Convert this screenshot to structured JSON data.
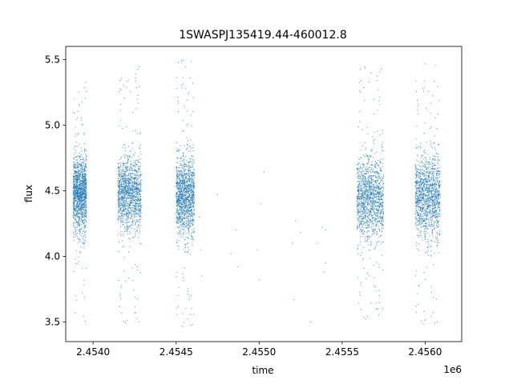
{
  "chart_data": {
    "type": "scatter",
    "title": "1SWASPJ135419.44-460012.8",
    "xlabel": "time",
    "ylabel": "flux",
    "x_offset_label": "1e6",
    "xlim": [
      2453835,
      2456220
    ],
    "ylim": [
      3.35,
      5.6
    ],
    "x_ticks": [
      2.454,
      2.4545,
      2.455,
      2.4555,
      2.456
    ],
    "x_tick_labels": [
      "2.4540",
      "2.4545",
      "2.4550",
      "2.4555",
      "2.4560"
    ],
    "y_ticks": [
      3.5,
      4.0,
      4.5,
      5.0,
      5.5
    ],
    "y_tick_labels": [
      "3.5",
      "4.0",
      "4.5",
      "5.0",
      "5.5"
    ],
    "grid": false,
    "marker_color": "#1f77b4",
    "clusters": [
      {
        "x_range": [
          2453880,
          2453960
        ],
        "y_center": 4.47,
        "y_spread": 0.14,
        "y_min": 3.5,
        "y_max": 5.33
      },
      {
        "x_range": [
          2454150,
          2454290
        ],
        "y_center": 4.47,
        "y_spread": 0.14,
        "y_min": 3.47,
        "y_max": 5.47
      },
      {
        "x_range": [
          2454500,
          2454610
        ],
        "y_center": 4.45,
        "y_spread": 0.15,
        "y_min": 3.45,
        "y_max": 5.5
      },
      {
        "x_range": [
          2455590,
          2455750
        ],
        "y_center": 4.43,
        "y_spread": 0.16,
        "y_min": 3.5,
        "y_max": 5.45
      },
      {
        "x_range": [
          2455940,
          2456090
        ],
        "y_center": 4.45,
        "y_spread": 0.16,
        "y_min": 3.47,
        "y_max": 5.47
      }
    ],
    "sparse_points": [
      {
        "x": 2454640,
        "y": 4.3
      },
      {
        "x": 2454650,
        "y": 4.05
      },
      {
        "x": 2454655,
        "y": 3.85
      },
      {
        "x": 2454750,
        "y": 4.47
      },
      {
        "x": 2454830,
        "y": 4.02
      },
      {
        "x": 2454860,
        "y": 4.2
      },
      {
        "x": 2454870,
        "y": 3.92
      },
      {
        "x": 2454990,
        "y": 4.05
      },
      {
        "x": 2455000,
        "y": 3.82
      },
      {
        "x": 2455010,
        "y": 4.4
      },
      {
        "x": 2455030,
        "y": 4.64
      },
      {
        "x": 2455200,
        "y": 4.1
      },
      {
        "x": 2455210,
        "y": 3.67
      },
      {
        "x": 2455220,
        "y": 4.27
      },
      {
        "x": 2455250,
        "y": 4.18
      },
      {
        "x": 2455310,
        "y": 3.5
      },
      {
        "x": 2455350,
        "y": 4.1
      },
      {
        "x": 2455380,
        "y": 4.22
      },
      {
        "x": 2455390,
        "y": 3.88
      },
      {
        "x": 2455400,
        "y": 4.2
      },
      {
        "x": 2455400,
        "y": 3.95
      }
    ]
  }
}
